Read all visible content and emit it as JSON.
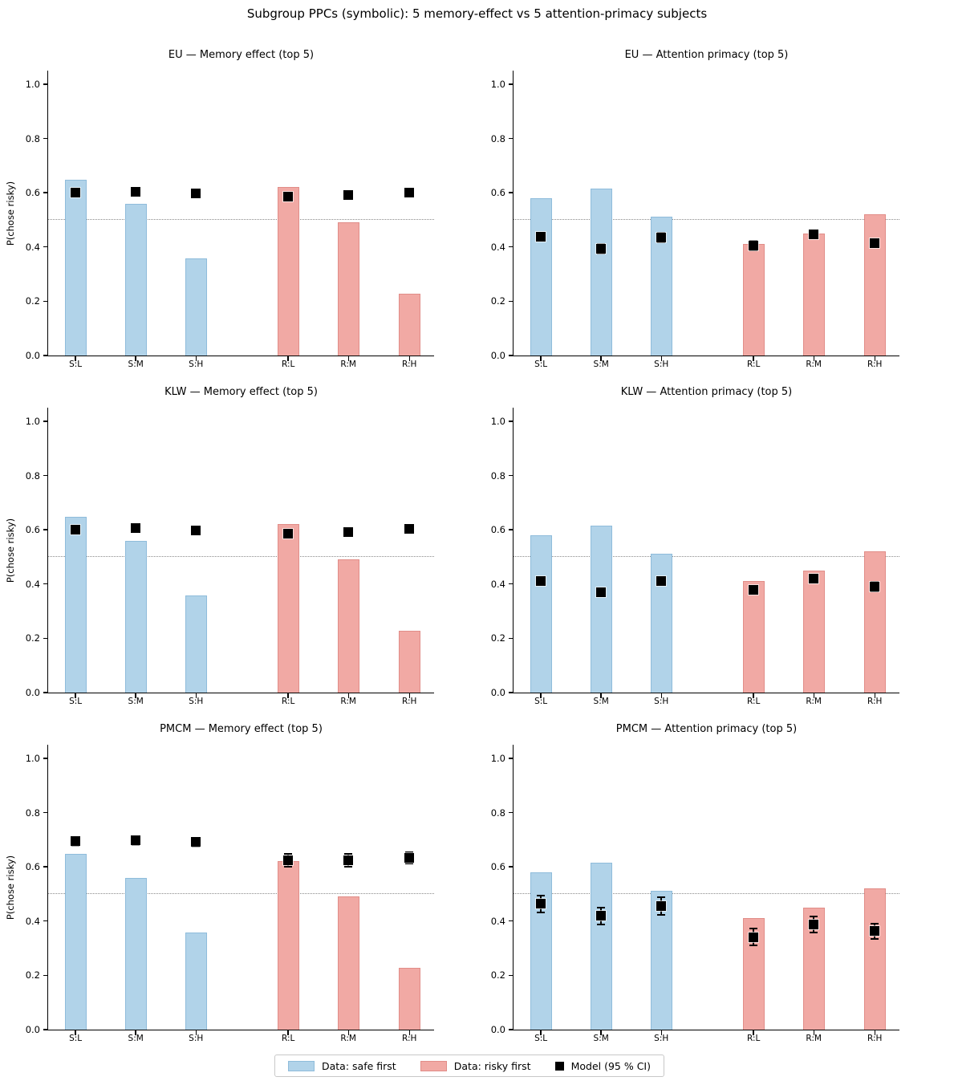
{
  "figure": {
    "title": "Subgroup PPCs (symbolic): 5 memory-effect vs 5 attention-primacy subjects",
    "ylabel": "P(chose risky)",
    "yticks": [
      0.0,
      0.2,
      0.4,
      0.6,
      0.8,
      1.0
    ],
    "ytick_labels": [
      "0.0",
      "0.2",
      "0.4",
      "0.6",
      "0.8",
      "1.0"
    ],
    "colors": {
      "safe_fill": "#b1d3e9",
      "safe_edge": "#8fbcdb",
      "risky_fill": "#f1a9a4",
      "risky_edge": "#e18d88",
      "model": "#000000",
      "baseline": "#8a8a8a"
    },
    "legend": [
      {
        "swatch": "safe",
        "label": "Data: safe first"
      },
      {
        "swatch": "risky",
        "label": "Data: risky first"
      },
      {
        "swatch": "model",
        "label": "Model (95 % CI)"
      }
    ]
  },
  "chart_data": [
    {
      "type": "bar",
      "title": "EU — Memory effect (top 5)",
      "xlabel": "",
      "ylabel": "P(chose risky)",
      "ylim": [
        0,
        1.05
      ],
      "baseline": 0.5,
      "categories": [
        "S:L",
        "S:M",
        "S:H",
        "R:L",
        "R:M",
        "R:H"
      ],
      "bar_values": [
        0.648,
        0.558,
        0.358,
        0.621,
        0.492,
        0.227
      ],
      "model_mean": [
        0.601,
        0.604,
        0.596,
        0.585,
        0.593,
        0.601
      ],
      "model_ci": [
        0.006,
        0.006,
        0.007,
        0.007,
        0.006,
        0.006
      ]
    },
    {
      "type": "bar",
      "title": "EU — Attention primacy (top 5)",
      "xlabel": "",
      "ylabel": "",
      "ylim": [
        0,
        1.05
      ],
      "baseline": 0.5,
      "categories": [
        "S:L",
        "S:M",
        "S:H",
        "R:L",
        "R:M",
        "R:H"
      ],
      "bar_values": [
        0.579,
        0.615,
        0.512,
        0.411,
        0.451,
        0.521
      ],
      "model_mean": [
        0.437,
        0.394,
        0.435,
        0.406,
        0.447,
        0.414
      ],
      "model_ci": [
        0.014,
        0.018,
        0.017,
        0.018,
        0.012,
        0.016
      ]
    },
    {
      "type": "bar",
      "title": "KLW — Memory effect (top 5)",
      "xlabel": "",
      "ylabel": "P(chose risky)",
      "ylim": [
        0,
        1.05
      ],
      "baseline": 0.5,
      "categories": [
        "S:L",
        "S:M",
        "S:H",
        "R:L",
        "R:M",
        "R:H"
      ],
      "bar_values": [
        0.648,
        0.558,
        0.358,
        0.621,
        0.492,
        0.227
      ],
      "model_mean": [
        0.6,
        0.607,
        0.597,
        0.587,
        0.593,
        0.603
      ],
      "model_ci": [
        0.007,
        0.007,
        0.007,
        0.008,
        0.007,
        0.007
      ]
    },
    {
      "type": "bar",
      "title": "KLW — Attention primacy (top 5)",
      "xlabel": "",
      "ylabel": "",
      "ylim": [
        0,
        1.05
      ],
      "baseline": 0.5,
      "categories": [
        "S:L",
        "S:M",
        "S:H",
        "R:L",
        "R:M",
        "R:H"
      ],
      "bar_values": [
        0.579,
        0.615,
        0.512,
        0.411,
        0.451,
        0.521
      ],
      "model_mean": [
        0.41,
        0.371,
        0.411,
        0.378,
        0.42,
        0.391
      ],
      "model_ci": [
        0.015,
        0.014,
        0.016,
        0.015,
        0.013,
        0.017
      ]
    },
    {
      "type": "bar",
      "title": "PMCM — Memory effect (top 5)",
      "xlabel": "",
      "ylabel": "P(chose risky)",
      "ylim": [
        0,
        1.05
      ],
      "baseline": 0.5,
      "categories": [
        "S:L",
        "S:M",
        "S:H",
        "R:L",
        "R:M",
        "R:H"
      ],
      "bar_values": [
        0.648,
        0.558,
        0.358,
        0.621,
        0.492,
        0.227
      ],
      "model_mean": [
        0.694,
        0.697,
        0.691,
        0.624,
        0.623,
        0.633
      ],
      "model_ci": [
        0.017,
        0.016,
        0.016,
        0.024,
        0.024,
        0.021
      ]
    },
    {
      "type": "bar",
      "title": "PMCM — Attention primacy (top 5)",
      "xlabel": "",
      "ylabel": "",
      "ylim": [
        0,
        1.05
      ],
      "baseline": 0.5,
      "categories": [
        "S:L",
        "S:M",
        "S:H",
        "R:L",
        "R:M",
        "R:H"
      ],
      "bar_values": [
        0.579,
        0.615,
        0.512,
        0.411,
        0.451,
        0.521
      ],
      "model_mean": [
        0.463,
        0.419,
        0.455,
        0.341,
        0.388,
        0.363
      ],
      "model_ci": [
        0.031,
        0.031,
        0.032,
        0.031,
        0.029,
        0.028
      ]
    }
  ]
}
